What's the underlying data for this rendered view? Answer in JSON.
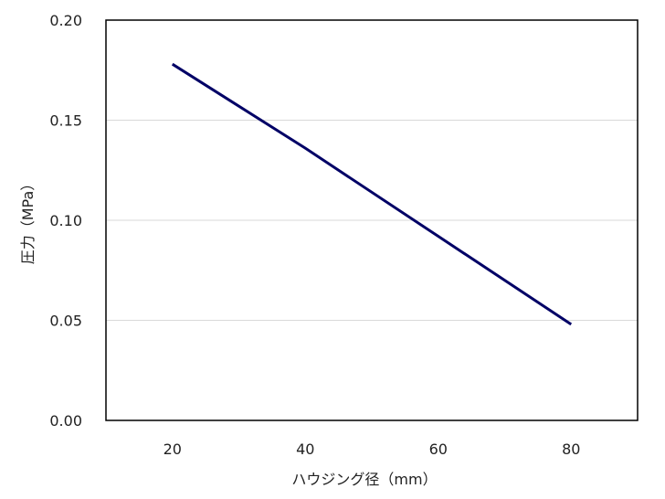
{
  "chart_data": {
    "type": "line",
    "title": "",
    "xlabel": "ハウジング径（mm）",
    "ylabel": "圧力（MPa）",
    "x": [
      20,
      40,
      60,
      80
    ],
    "series": [
      {
        "name": "圧力",
        "values": [
          0.178,
          0.136,
          0.092,
          0.048
        ],
        "color": "#000066"
      }
    ],
    "xlim": [
      10,
      90
    ],
    "ylim": [
      0.0,
      0.2
    ],
    "xticks": [
      "20",
      "40",
      "60",
      "80"
    ],
    "yticks": [
      "0.00",
      "0.05",
      "0.10",
      "0.15",
      "0.20"
    ],
    "grid": {
      "horizontal": true,
      "vertical": false,
      "color": "#d9d9d9"
    },
    "legend": null
  }
}
